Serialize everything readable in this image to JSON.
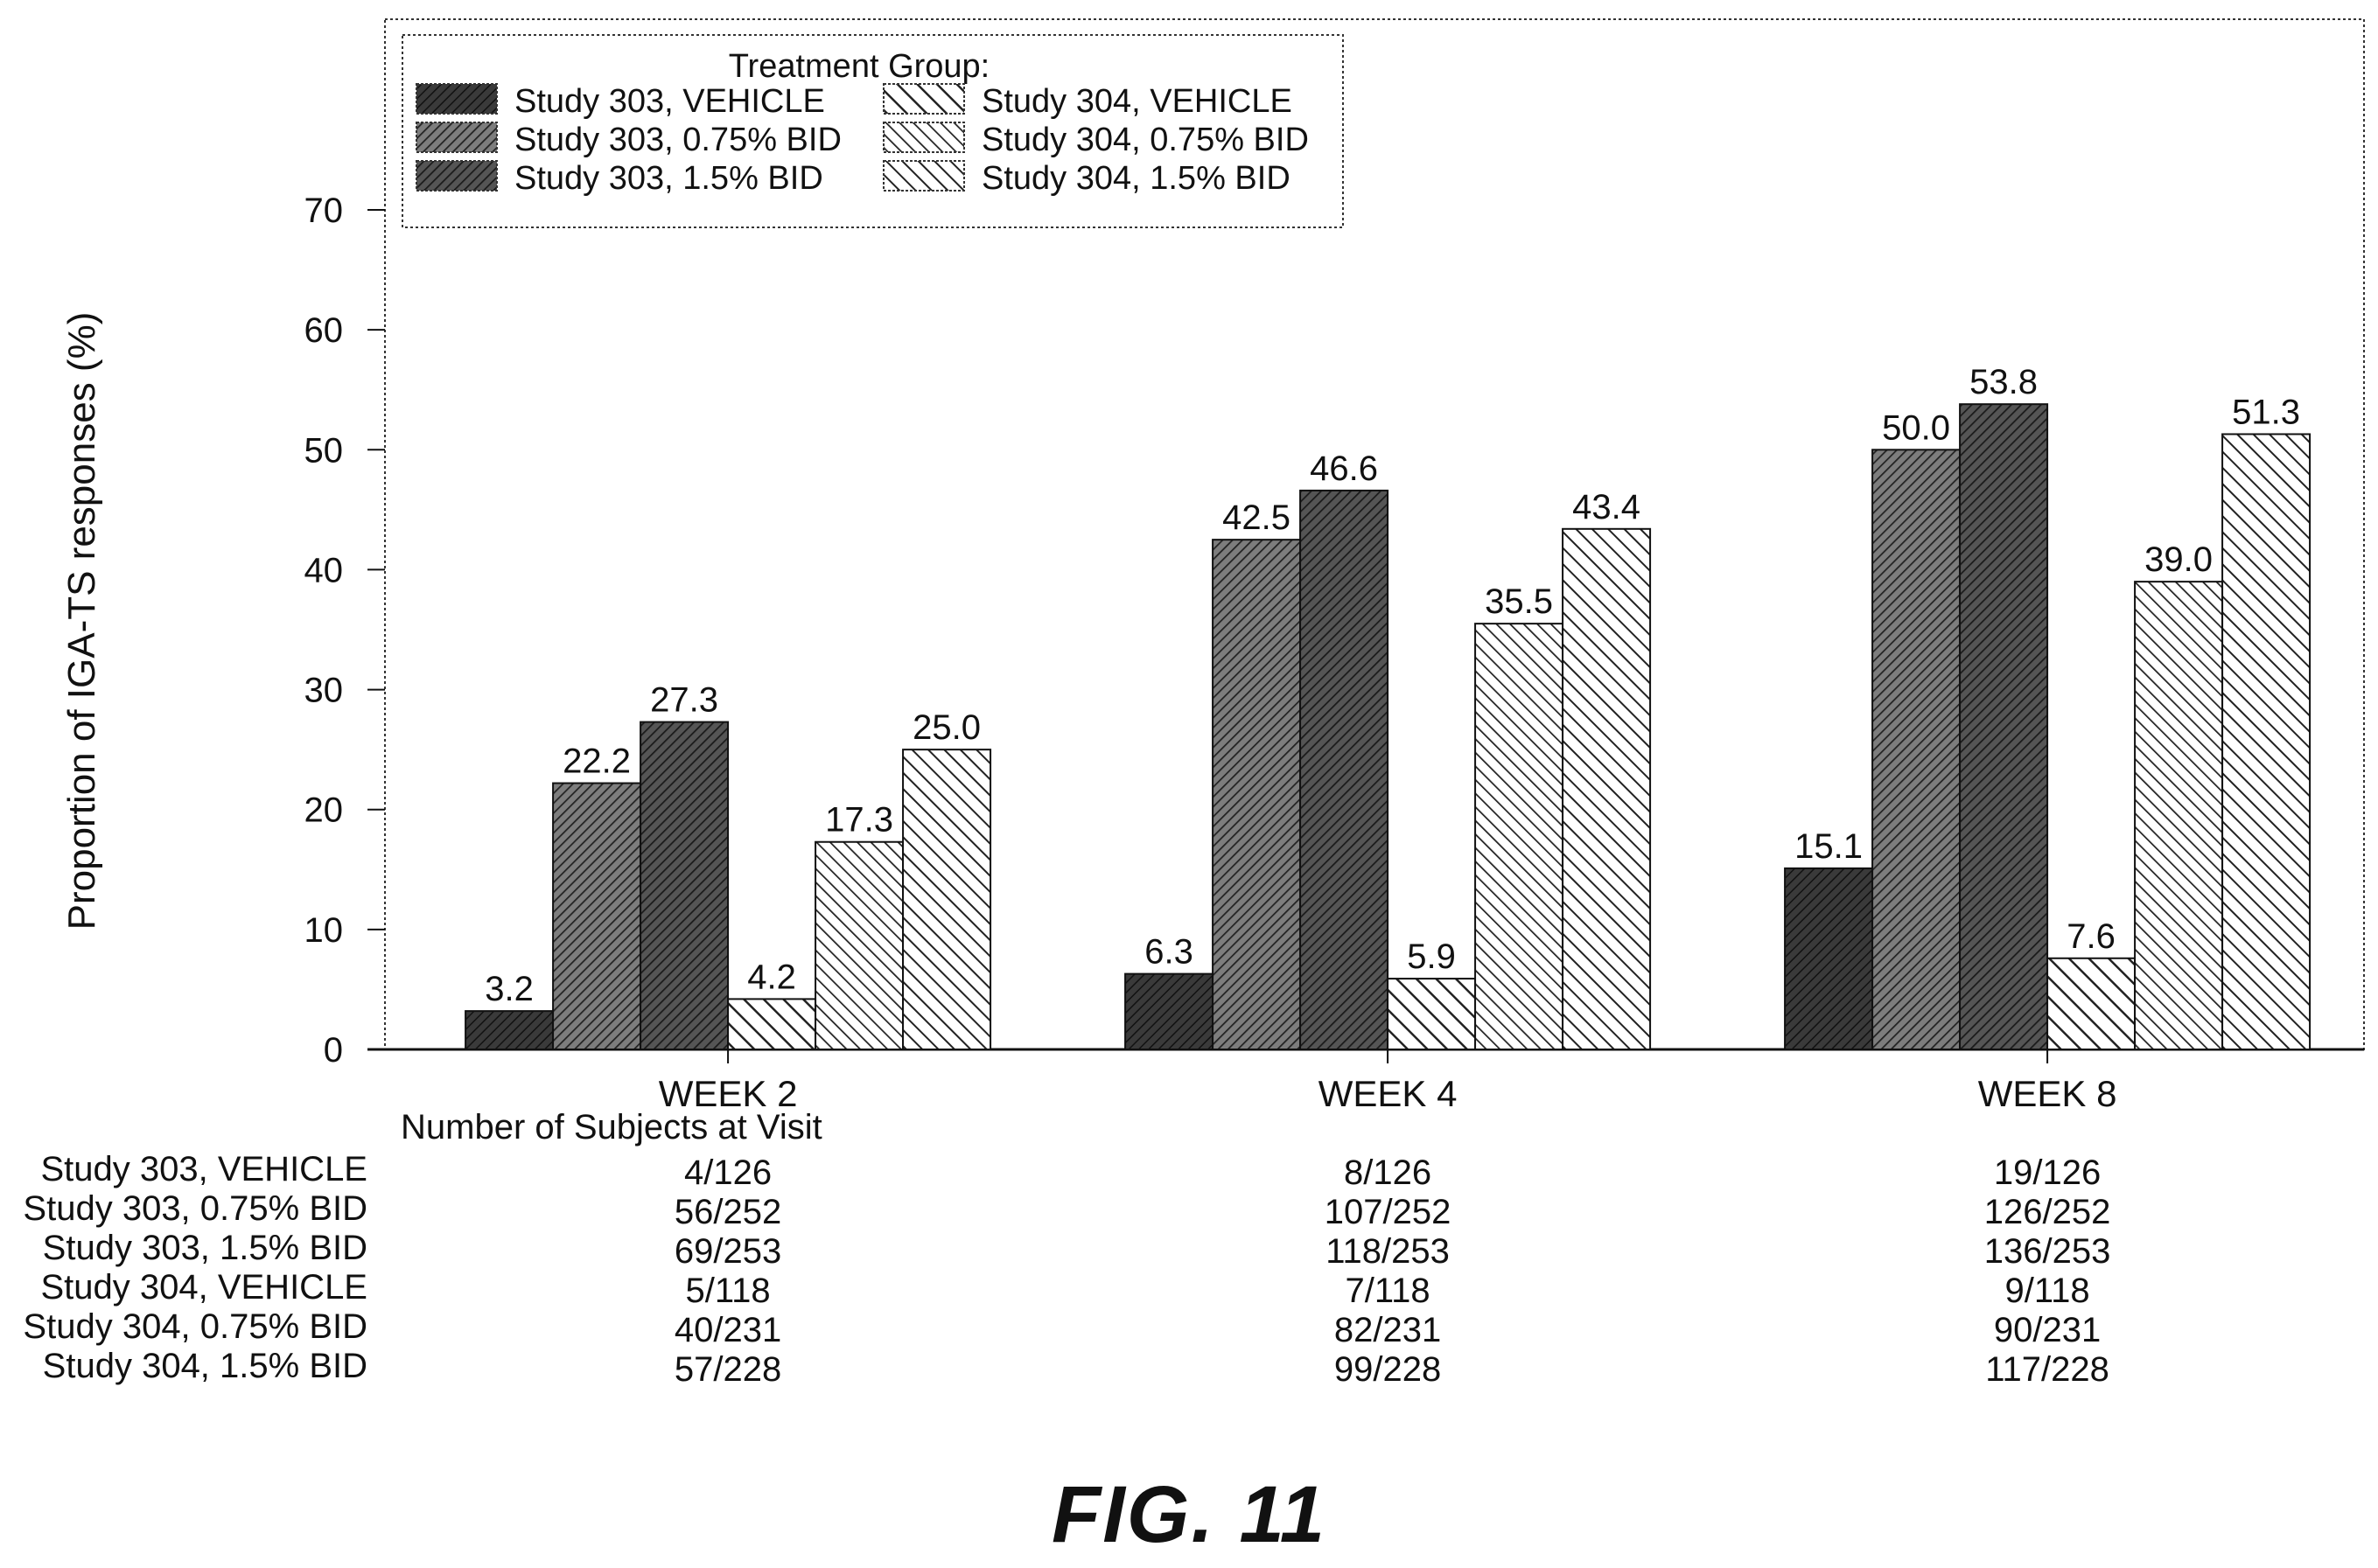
{
  "chart_data": {
    "type": "bar",
    "ylabel": "Proportion of IGA-TS responses (%)",
    "ylim": [
      0,
      70
    ],
    "yticks": [
      "0",
      "10",
      "20",
      "30",
      "40",
      "50",
      "60",
      "70"
    ],
    "categories": [
      "WEEK 2",
      "WEEK 4",
      "WEEK 8"
    ],
    "legend": {
      "title": "Treatment Group:",
      "placement": "top-left"
    },
    "series": [
      {
        "name": "Study 303, VEHICLE",
        "values": [
          3.2,
          6.3,
          15.1
        ],
        "labels": [
          "3.2",
          "6.3",
          "15.1"
        ],
        "counts": [
          "4/126",
          "8/126",
          "19/126"
        ]
      },
      {
        "name": "Study 303, 0.75% BID",
        "values": [
          22.2,
          42.5,
          50.0
        ],
        "labels": [
          "22.2",
          "42.5",
          "50.0"
        ],
        "counts": [
          "56/252",
          "107/252",
          "126/252"
        ]
      },
      {
        "name": "Study 303, 1.5% BID",
        "values": [
          27.3,
          46.6,
          53.8
        ],
        "labels": [
          "27.3",
          "46.6",
          "53.8"
        ],
        "counts": [
          "69/253",
          "118/253",
          "136/253"
        ]
      },
      {
        "name": "Study 304, VEHICLE",
        "values": [
          4.2,
          5.9,
          7.6
        ],
        "labels": [
          "4.2",
          "5.9",
          "7.6"
        ],
        "counts": [
          "5/118",
          "7/118",
          "9/118"
        ]
      },
      {
        "name": "Study 304, 0.75% BID",
        "values": [
          17.3,
          35.5,
          39.0
        ],
        "labels": [
          "17.3",
          "35.5",
          "39.0"
        ],
        "counts": [
          "40/231",
          "82/231",
          "90/231"
        ]
      },
      {
        "name": "Study 304, 1.5% BID",
        "values": [
          25.0,
          43.4,
          51.3
        ],
        "labels": [
          "25.0",
          "43.4",
          "51.3"
        ],
        "counts": [
          "57/228",
          "99/228",
          "117/228"
        ]
      }
    ],
    "table_title": "Number of Subjects at Visit",
    "grid": false
  },
  "figure_caption": "FIG. 11"
}
